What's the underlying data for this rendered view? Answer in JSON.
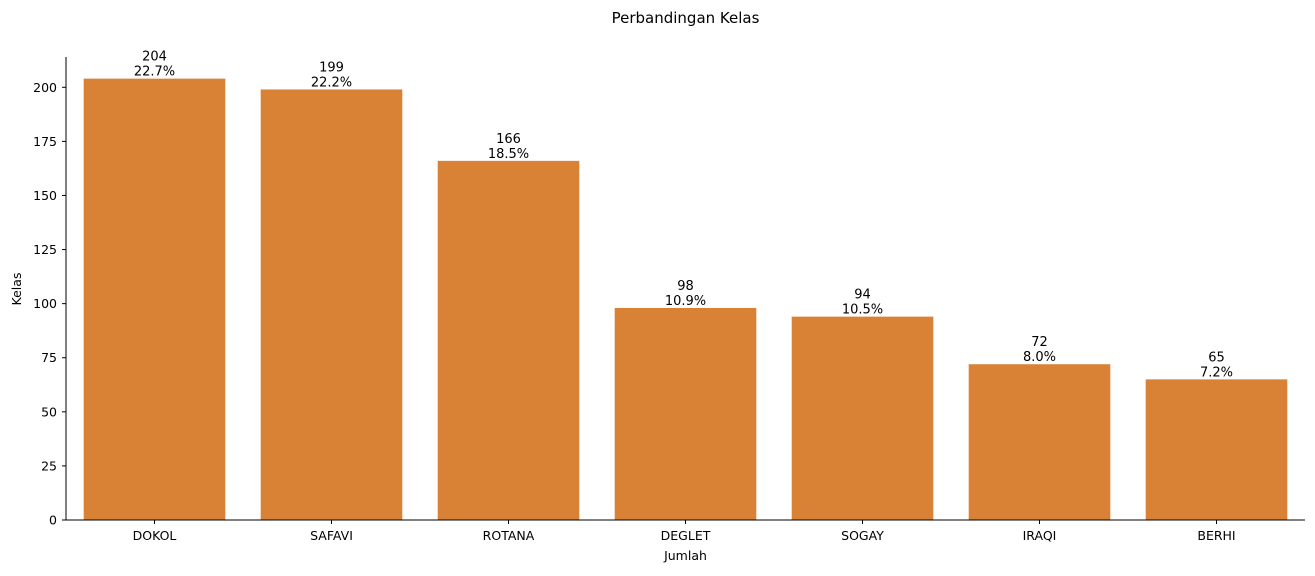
{
  "chart_data": {
    "type": "bar",
    "title": "Perbandingan Kelas",
    "xlabel": "Jumlah",
    "ylabel": "Kelas",
    "categories": [
      "DOKOL",
      "SAFAVI",
      "ROTANA",
      "DEGLET",
      "SOGAY",
      "IRAQI",
      "BERHI"
    ],
    "values": [
      204,
      199,
      166,
      98,
      94,
      72,
      65
    ],
    "percent_labels": [
      "22.7%",
      "22.2%",
      "18.5%",
      "10.9%",
      "10.5%",
      "8.0%",
      "7.2%"
    ],
    "ylim": [
      0,
      214
    ],
    "yticks": [
      0,
      25,
      50,
      75,
      100,
      125,
      150,
      175,
      200
    ],
    "bar_color": "#d98236",
    "grid": false
  }
}
